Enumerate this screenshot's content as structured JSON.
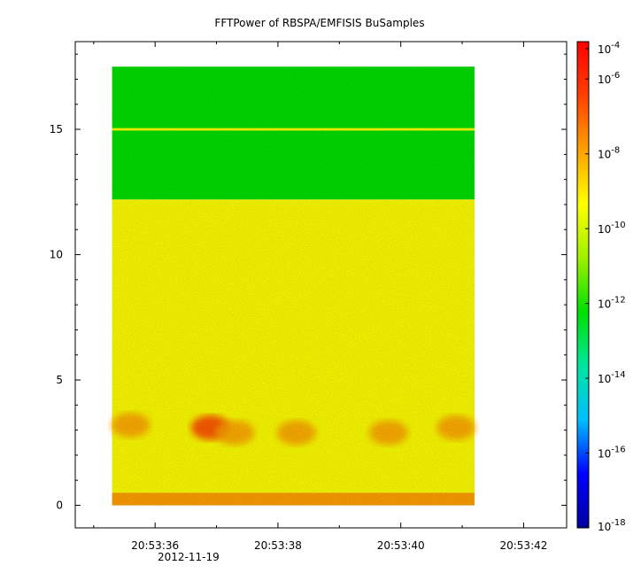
{
  "chart_data": {
    "type": "heatmap",
    "title": "FFTPower of RBSPA/EMFISIS  BuSamples",
    "xlabel": "",
    "ylabel": "",
    "x_tick_labels": [
      "20:53:36",
      "20:53:38",
      "20:53:40",
      "20:53:42"
    ],
    "x_date_label": "2012-11-19",
    "x_range_seconds": [
      34.7,
      42.7
    ],
    "x_data_range_seconds": [
      35.3,
      41.2
    ],
    "y_ticks": [
      0,
      5,
      10,
      15
    ],
    "ylim": [
      -0.9,
      18.5
    ],
    "y_data_range": [
      0,
      17.5
    ],
    "colorbar": {
      "scale": "log",
      "range": [
        1e-18,
        1e-05
      ],
      "tick_labels": [
        "10",
        "10",
        "10",
        "10",
        "10",
        "10",
        "10",
        "10"
      ],
      "tick_exponents": [
        "-4",
        "-6",
        "-8",
        "-10",
        "-12",
        "-14",
        "-16",
        "-18"
      ],
      "tick_values": [
        0.0001,
        1e-06,
        1e-08,
        1e-10,
        1e-12,
        1e-14,
        1e-16,
        1e-18
      ]
    },
    "bands": [
      {
        "y_range": [
          12.2,
          17.5
        ],
        "level": 1e-12
      },
      {
        "y_range": [
          0.5,
          12.2
        ],
        "level": 1e-10
      },
      {
        "y_range": [
          0,
          0.5
        ],
        "level": 1e-08
      },
      {
        "y_range": [
          14.95,
          15.05
        ],
        "level": 1e-10
      }
    ],
    "hotspots": [
      {
        "x_seconds": 35.6,
        "y": 3.2,
        "level": 1e-08
      },
      {
        "x_seconds": 36.9,
        "y": 3.1,
        "level": 1e-07
      },
      {
        "x_seconds": 37.3,
        "y": 2.9,
        "level": 1e-08
      },
      {
        "x_seconds": 38.3,
        "y": 2.9,
        "level": 1e-08
      },
      {
        "x_seconds": 39.8,
        "y": 2.9,
        "level": 1e-08
      },
      {
        "x_seconds": 40.9,
        "y": 3.1,
        "level": 1e-08
      }
    ],
    "colors": {
      "colorbar_stops": [
        "#0000a0",
        "#0000ff",
        "#00bfff",
        "#00e5a0",
        "#00e000",
        "#a0f000",
        "#ffff00",
        "#ffa000",
        "#ff4000",
        "#ff0000"
      ]
    }
  }
}
